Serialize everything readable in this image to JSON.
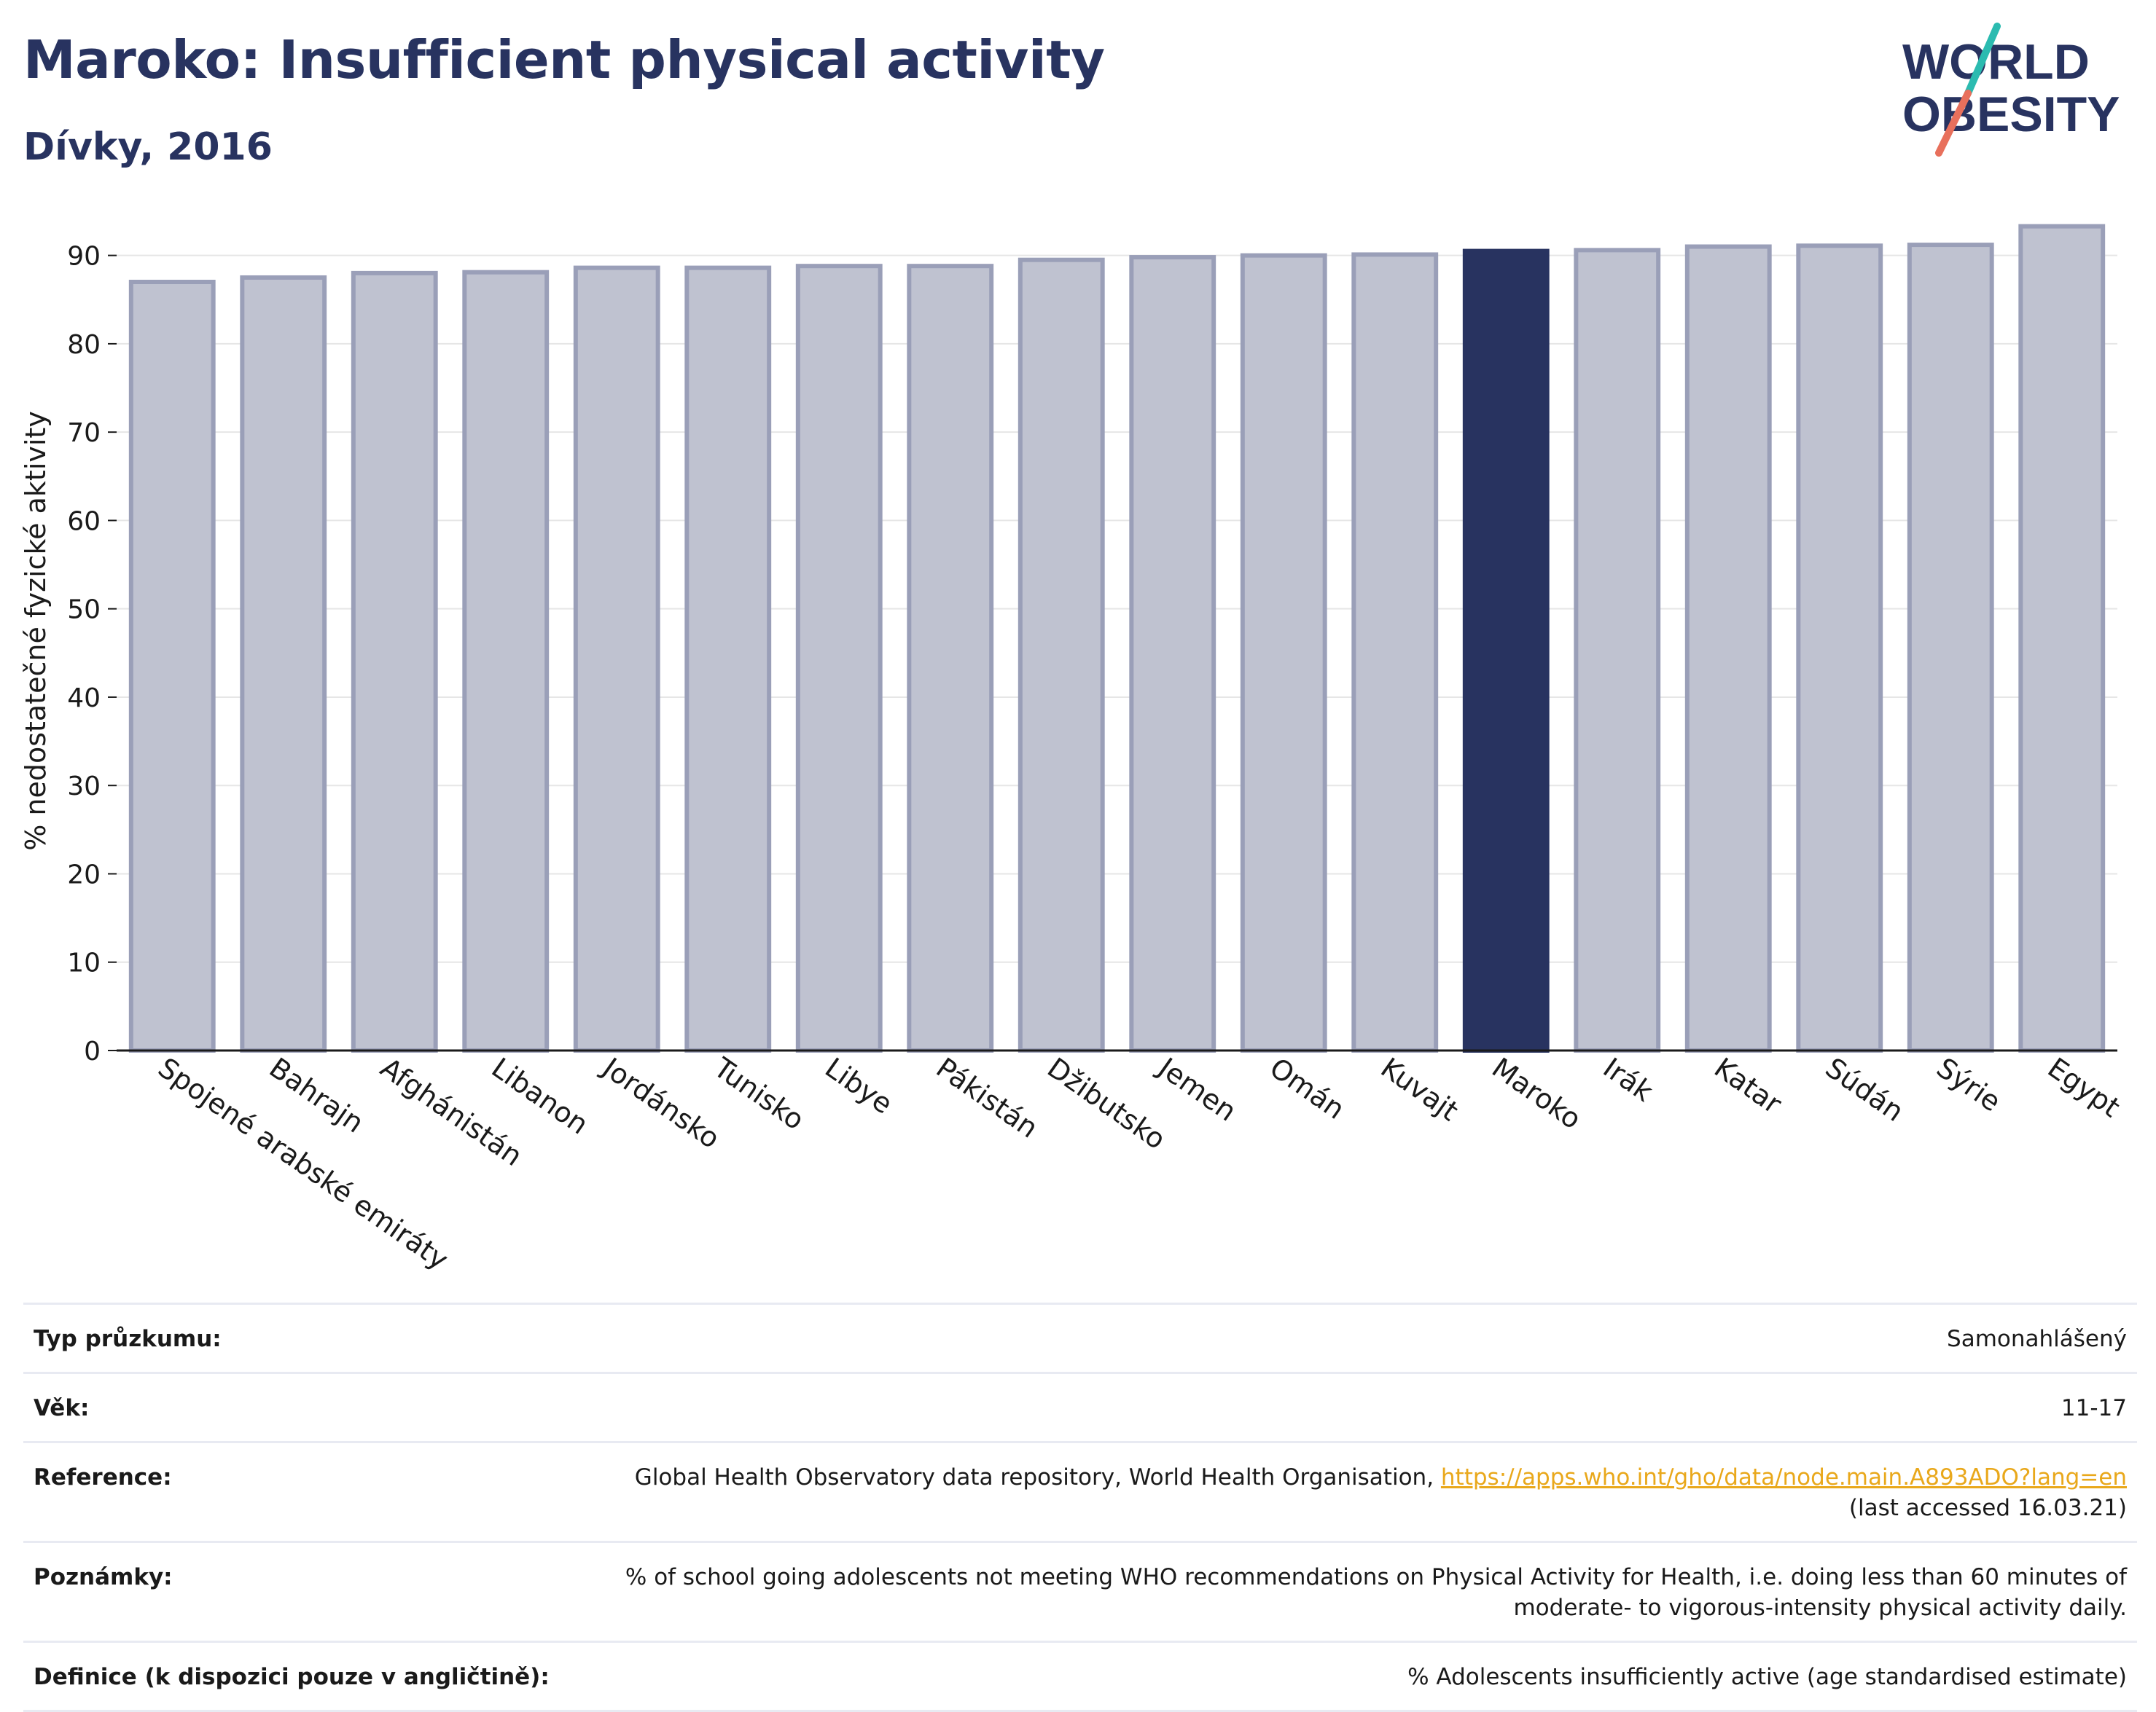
{
  "header": {
    "title": "Maroko: Insufficient physical activity",
    "subtitle": "Dívky, 2016"
  },
  "logo": {
    "line1": "WORLD",
    "line2": "OBESITY"
  },
  "colors": {
    "highlight_bar": "#283360",
    "other_bar_fill": "#bfc2d0",
    "other_bar_stroke": "#9a9fb8",
    "link": "#e9a81b",
    "logo_teal": "#2bbbb0",
    "logo_coral": "#e8705c"
  },
  "chart_data": {
    "type": "bar",
    "title": "Maroko: Insufficient physical activity",
    "subtitle": "Dívky, 2016",
    "ylabel": "% nedostatečné fyzické aktivity",
    "xlabel": "",
    "ylim": [
      0,
      95
    ],
    "yticks": [
      0,
      10,
      20,
      30,
      40,
      50,
      60,
      70,
      80,
      90
    ],
    "grid": true,
    "highlight": "Maroko",
    "categories": [
      "Spojené arabské emiráty",
      "Bahrajn",
      "Afghánistán",
      "Libanon",
      "Jordánsko",
      "Tunisko",
      "Libye",
      "Pákistán",
      "Džibutsko",
      "Jemen",
      "Omán",
      "Kuvajt",
      "Maroko",
      "Irák",
      "Katar",
      "Súdán",
      "Sýrie",
      "Egypt"
    ],
    "values": [
      87.0,
      87.5,
      88.0,
      88.1,
      88.6,
      88.6,
      88.8,
      88.8,
      89.5,
      89.8,
      90.0,
      90.1,
      90.5,
      90.6,
      91.0,
      91.1,
      91.2,
      93.3
    ]
  },
  "meta": [
    {
      "key": "Typ průzkumu:",
      "value": "Samonahlášený"
    },
    {
      "key": "Věk:",
      "value": "11-17"
    },
    {
      "key": "Reference:",
      "value": "Global Health Observatory data repository, World Health Organisation,",
      "link": "https://apps.who.int/gho/data/node.main.A893ADO?lang=en",
      "value2": "(last accessed 16.03.21)"
    },
    {
      "key": "Poznámky:",
      "value": "% of school going adolescents not meeting WHO recommendations on Physical Activity for Health, i.e. doing less than 60 minutes of",
      "value2": "moderate- to vigorous-intensity physical activity daily."
    },
    {
      "key": "Definice (k dispozici pouze v angličtině):",
      "value": "% Adolescents insufficiently active (age standardised estimate)"
    }
  ]
}
